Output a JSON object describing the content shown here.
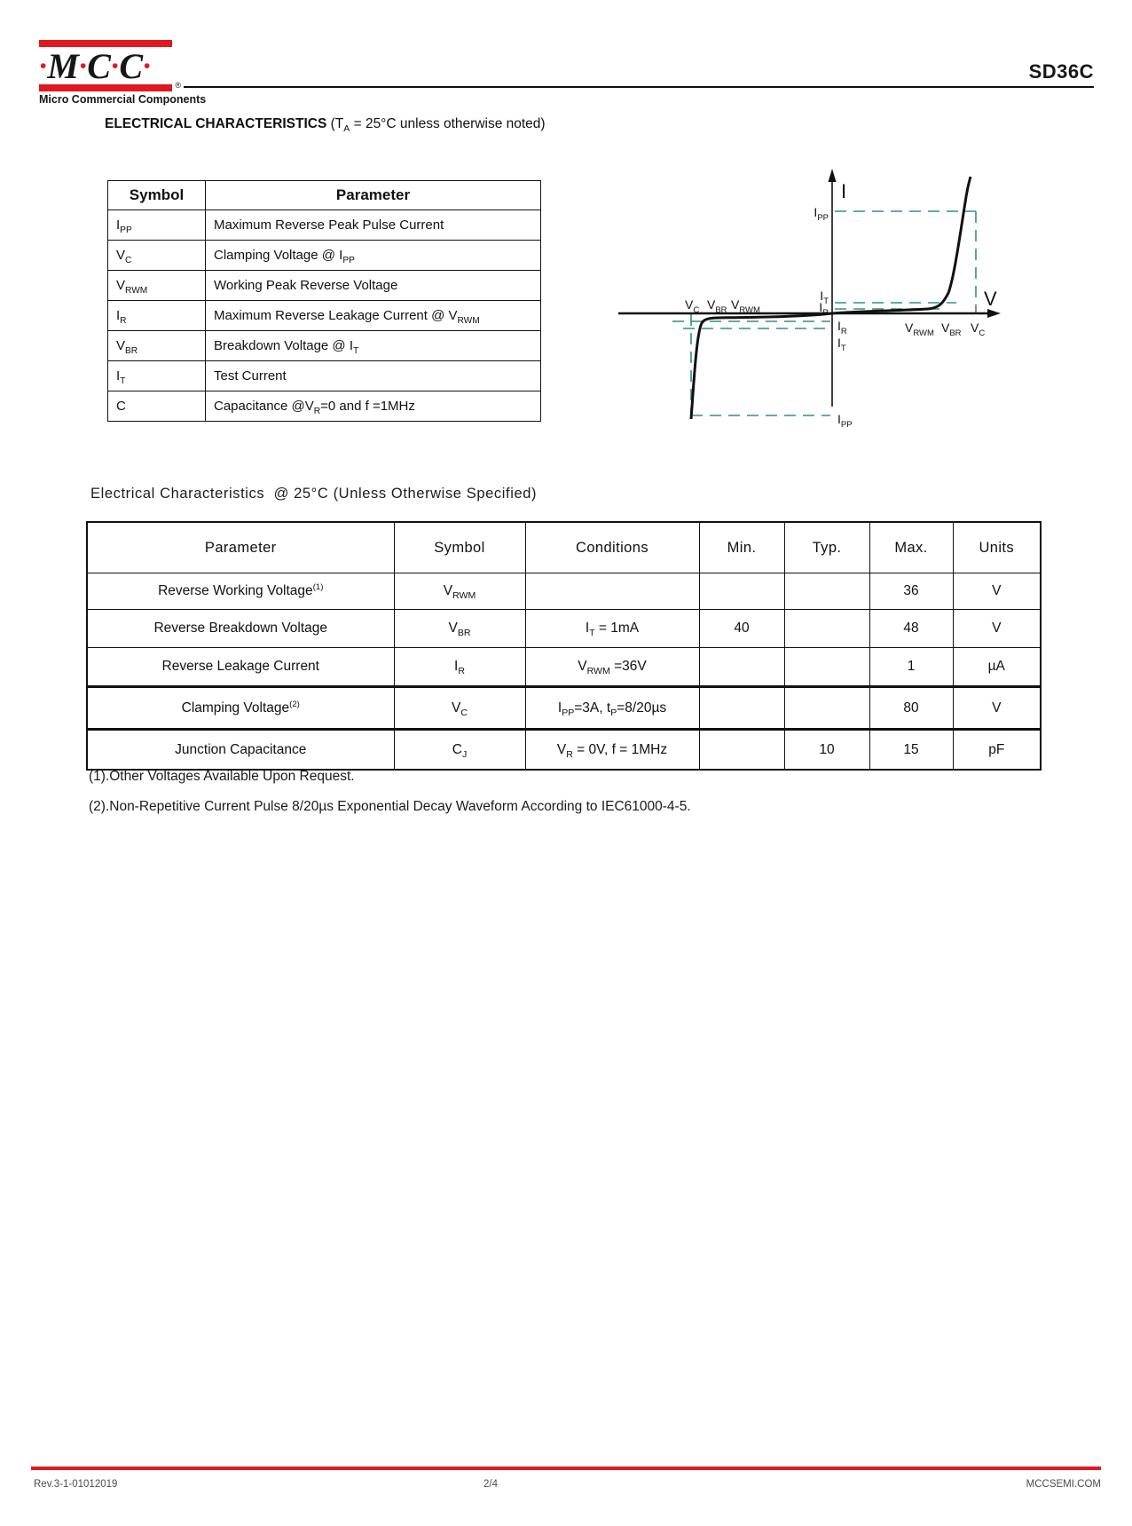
{
  "logo": {
    "dot": "•",
    "letter_m": "M",
    "letter_c1": "C",
    "letter_c2": "C",
    "reg": "®",
    "tagline": "Micro Commercial Components",
    "brand_red": "#e2181f"
  },
  "header": {
    "product": "SD36C"
  },
  "section1": {
    "title": "ELECTRICAL CHARACTERISTICS",
    "subtitle": [
      {
        "t": " (T"
      },
      {
        "sub": "A"
      },
      {
        "t": " = 25°C unless otherwise noted)"
      }
    ]
  },
  "symbol_table": {
    "headers": [
      "Symbol",
      "Parameter"
    ],
    "rows": [
      {
        "symbol": [
          {
            "t": "I"
          },
          {
            "sub": "PP"
          }
        ],
        "param": [
          {
            "t": "Maximum Reverse Peak Pulse Current"
          }
        ]
      },
      {
        "symbol": [
          {
            "t": "V"
          },
          {
            "sub": "C"
          }
        ],
        "param": [
          {
            "t": "Clamping Voltage @ I"
          },
          {
            "sub": "PP"
          }
        ]
      },
      {
        "symbol": [
          {
            "t": "V"
          },
          {
            "sub": "RWM"
          }
        ],
        "param": [
          {
            "t": "Working Peak Reverse Voltage"
          }
        ]
      },
      {
        "symbol": [
          {
            "t": "I"
          },
          {
            "sub": "R"
          }
        ],
        "param": [
          {
            "t": "Maximum Reverse Leakage Current @ V"
          },
          {
            "sub": "RWM"
          }
        ]
      },
      {
        "symbol": [
          {
            "t": "V"
          },
          {
            "sub": "BR"
          }
        ],
        "param": [
          {
            "t": "Breakdown Voltage @ I"
          },
          {
            "sub": "T"
          }
        ]
      },
      {
        "symbol": [
          {
            "t": "I"
          },
          {
            "sub": "T"
          }
        ],
        "param": [
          {
            "t": "Test Current"
          }
        ]
      },
      {
        "symbol": [
          {
            "t": "C"
          }
        ],
        "param": [
          {
            "t": "Capacitance @V"
          },
          {
            "sub": "R"
          },
          {
            "t": "=0 and f =1MHz"
          }
        ]
      }
    ]
  },
  "diagram": {
    "dash_color": "#2e9185",
    "axis": {
      "i": "I",
      "v": "V"
    },
    "ipp": {
      "base": "I",
      "sub": "PP"
    },
    "it": {
      "base": "I",
      "sub": "T"
    },
    "ir": {
      "base": "I",
      "sub": "R"
    },
    "vc": {
      "base": "V",
      "sub": "C"
    },
    "vbr": {
      "base": "V",
      "sub": "BR"
    },
    "vrwm": {
      "base": "V",
      "sub": "RWM"
    }
  },
  "section2": {
    "title": "Electrical Characteristics  @ 25°C (Unless Otherwise Specified)"
  },
  "ec_table": {
    "headers": [
      "Parameter",
      "Symbol",
      "Conditions",
      "Min.",
      "Typ.",
      "Max.",
      "Units"
    ],
    "rows": [
      {
        "param": [
          {
            "t": "Reverse Working Voltage"
          },
          {
            "sup": "(1)"
          }
        ],
        "symbol": [
          {
            "t": "V"
          },
          {
            "sub": "RWM"
          }
        ],
        "cond": [],
        "min": "",
        "typ": "",
        "max": "36",
        "units": "V"
      },
      {
        "param": [
          {
            "t": "Reverse Breakdown Voltage"
          }
        ],
        "symbol": [
          {
            "t": "V"
          },
          {
            "sub": "BR"
          }
        ],
        "cond": [
          {
            "t": "I"
          },
          {
            "sub": "T"
          },
          {
            "t": " = 1mA"
          }
        ],
        "min": "40",
        "typ": "",
        "max": "48",
        "units": "V"
      },
      {
        "param": [
          {
            "t": "Reverse Leakage Current"
          }
        ],
        "symbol": [
          {
            "t": "I"
          },
          {
            "sub": "R"
          }
        ],
        "cond": [
          {
            "t": "V"
          },
          {
            "sub": "RWM"
          },
          {
            "t": " =36V"
          }
        ],
        "min": "",
        "typ": "",
        "max": "1",
        "units": "µA"
      },
      {
        "param": [
          {
            "t": "Clamping Voltage"
          },
          {
            "sup": "(2)"
          }
        ],
        "symbol": [
          {
            "t": "V"
          },
          {
            "sub": "C"
          }
        ],
        "cond": [
          {
            "t": "I"
          },
          {
            "sub": "PP"
          },
          {
            "t": "=3A, t"
          },
          {
            "sub": "P"
          },
          {
            "t": "=8/20µs"
          }
        ],
        "min": "",
        "typ": "",
        "max": "80",
        "units": "V"
      },
      {
        "param": [
          {
            "t": "Junction Capacitance"
          }
        ],
        "symbol": [
          {
            "t": "C"
          },
          {
            "sub": "J"
          }
        ],
        "cond": [
          {
            "t": "V"
          },
          {
            "sub": "R"
          },
          {
            "t": " = 0V, f = 1MHz"
          }
        ],
        "min": "",
        "typ": "10",
        "max": "15",
        "units": "pF"
      }
    ]
  },
  "notes": [
    "(1).Other Voltages Available Upon Request.",
    "(2).Non-Repetitive Current Pulse 8/20µs Exponential Decay Waveform According to IEC61000-4-5."
  ],
  "footer": {
    "rev": "Rev.3-1-01012019",
    "page_num": "2/4",
    "site": "MCCSEMI.COM"
  }
}
